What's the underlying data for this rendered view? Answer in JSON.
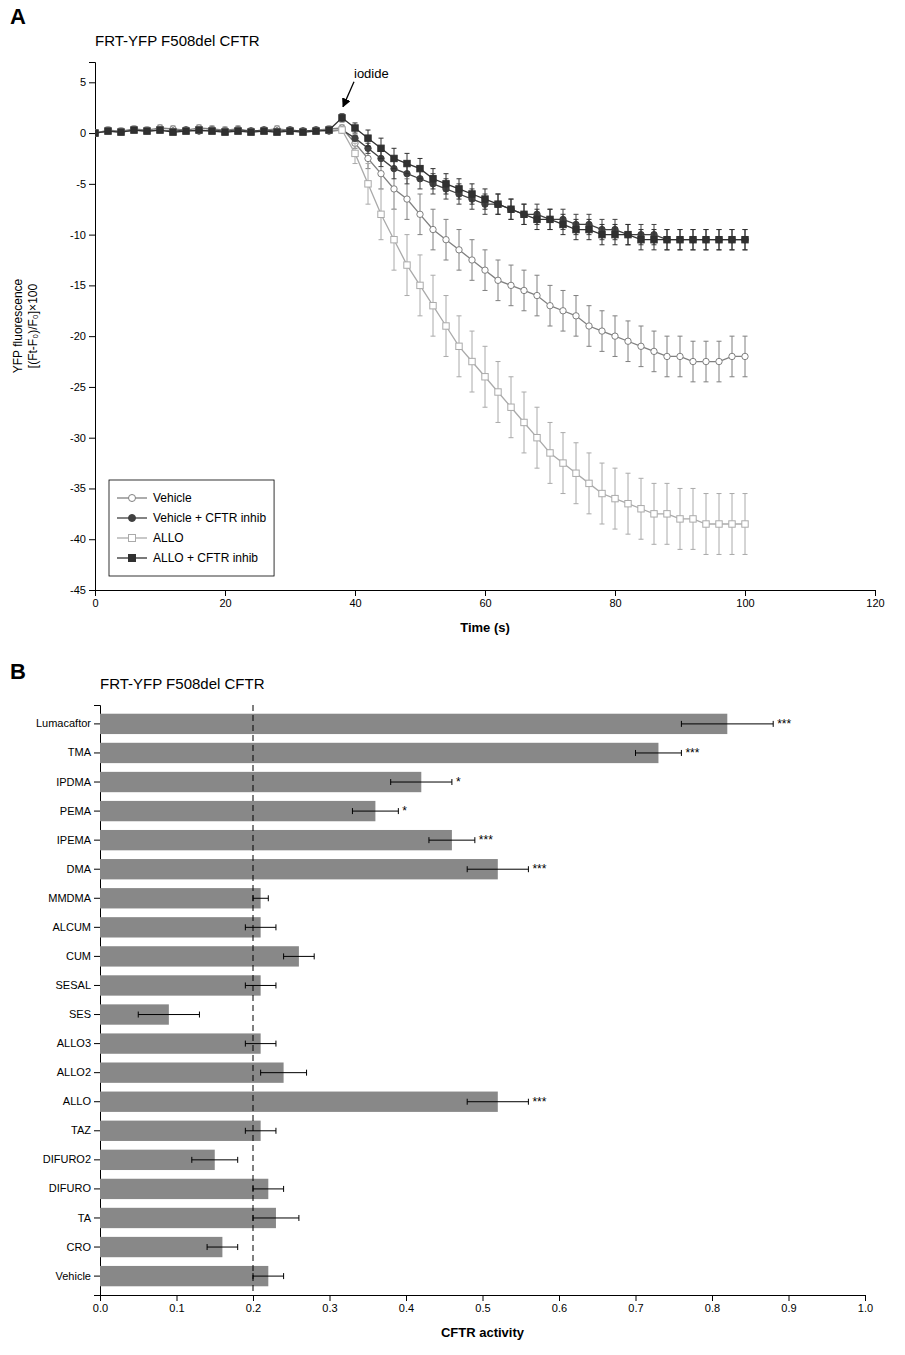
{
  "chart_data": [
    {
      "type": "line",
      "title": "FRT-YFP F508del CFTR",
      "xlabel": "Time (s)",
      "ylabel": "YFP fluorescence\n[(Ft-F₀)/F₀]×100",
      "xlim": [
        0,
        120
      ],
      "ylim": [
        -45,
        7
      ],
      "xticks": [
        0,
        20,
        40,
        60,
        80,
        100,
        120
      ],
      "yticks": [
        5,
        0,
        -5,
        -10,
        -15,
        -20,
        -25,
        -30,
        -35,
        -40,
        -45
      ],
      "grid": false,
      "legend": "lower left",
      "x": [
        0,
        2,
        4,
        6,
        8,
        10,
        12,
        14,
        16,
        18,
        20,
        22,
        24,
        26,
        28,
        30,
        32,
        34,
        36,
        38,
        40,
        42,
        44,
        46,
        48,
        50,
        52,
        54,
        56,
        58,
        60,
        62,
        64,
        66,
        68,
        70,
        72,
        74,
        76,
        78,
        80,
        82,
        84,
        86,
        88,
        90,
        92,
        94,
        96,
        98,
        100
      ],
      "series": [
        {
          "name": "Vehicle",
          "color": "#808080",
          "marker": "circle-open",
          "values": [
            0,
            0.3,
            0.2,
            0.4,
            0.3,
            0.5,
            0.4,
            0.3,
            0.5,
            0.4,
            0.3,
            0.4,
            0.2,
            0.3,
            0.4,
            0.3,
            0.2,
            0.3,
            0.4,
            0.5,
            -1.0,
            -2.5,
            -4.0,
            -5.5,
            -6.5,
            -8.0,
            -9.5,
            -10.5,
            -11.5,
            -12.5,
            -13.5,
            -14.5,
            -15.0,
            -15.5,
            -16.0,
            -17.0,
            -17.5,
            -18.0,
            -19.0,
            -19.5,
            -20.0,
            -20.5,
            -21.0,
            -21.5,
            -22.0,
            -22.0,
            -22.5,
            -22.5,
            -22.5,
            -22.0,
            -22.0
          ],
          "errors": [
            0.3,
            0.3,
            0.3,
            0.3,
            0.3,
            0.3,
            0.3,
            0.3,
            0.3,
            0.3,
            0.3,
            0.3,
            0.3,
            0.3,
            0.3,
            0.3,
            0.3,
            0.3,
            0.3,
            0.3,
            0.5,
            1.0,
            1.5,
            2.0,
            2.0,
            2.0,
            2.0,
            2.0,
            2.0,
            2.0,
            2.0,
            2.0,
            2.0,
            2.0,
            2.0,
            2.0,
            2.0,
            2.0,
            2.0,
            2.0,
            2.0,
            2.0,
            2.0,
            2.0,
            2.0,
            2.0,
            2.0,
            2.0,
            2.0,
            2.0,
            2.0
          ]
        },
        {
          "name": "Vehicle + CFTR inhib",
          "color": "#404040",
          "marker": "circle",
          "values": [
            0,
            0.2,
            0.1,
            0.3,
            0.2,
            0.3,
            0.2,
            0.3,
            0.2,
            0.3,
            0.2,
            0.3,
            0.2,
            0.3,
            0.2,
            0.3,
            0.2,
            0.3,
            0.2,
            0.3,
            -0.5,
            -1.5,
            -2.5,
            -3.5,
            -4.0,
            -4.5,
            -5.0,
            -5.5,
            -6.0,
            -6.5,
            -7.0,
            -7.0,
            -7.5,
            -8.0,
            -8.0,
            -8.5,
            -8.5,
            -9.0,
            -9.0,
            -9.5,
            -9.5,
            -10.0,
            -10.0,
            -10.0,
            -10.5,
            -10.5,
            -10.5,
            -10.5,
            -10.5,
            -10.5,
            -10.5
          ],
          "errors": [
            0.2,
            0.2,
            0.2,
            0.2,
            0.2,
            0.2,
            0.2,
            0.2,
            0.2,
            0.2,
            0.2,
            0.2,
            0.2,
            0.2,
            0.2,
            0.2,
            0.2,
            0.2,
            0.2,
            0.2,
            0.3,
            0.5,
            0.8,
            1.0,
            1.0,
            1.0,
            1.0,
            1.0,
            1.0,
            1.0,
            1.0,
            1.0,
            1.0,
            1.0,
            1.0,
            1.0,
            1.0,
            1.0,
            1.0,
            1.0,
            1.0,
            1.0,
            1.0,
            1.0,
            1.0,
            1.0,
            1.0,
            1.0,
            1.0,
            1.0,
            1.0
          ]
        },
        {
          "name": "ALLO",
          "color": "#aaaaaa",
          "marker": "square-open",
          "values": [
            0,
            0.2,
            0.1,
            0.3,
            0.2,
            0.3,
            0.1,
            0.2,
            0.3,
            0.2,
            0.1,
            0.2,
            0.1,
            0.2,
            0.1,
            0.2,
            0.1,
            0.2,
            0.3,
            0.3,
            -2.0,
            -5.0,
            -8.0,
            -10.5,
            -13.0,
            -15.0,
            -17.0,
            -19.0,
            -21.0,
            -22.5,
            -24.0,
            -25.5,
            -27.0,
            -28.5,
            -30.0,
            -31.5,
            -32.5,
            -33.5,
            -34.5,
            -35.5,
            -36.0,
            -36.5,
            -37.0,
            -37.5,
            -37.5,
            -38.0,
            -38.0,
            -38.5,
            -38.5,
            -38.5,
            -38.5
          ],
          "errors": [
            0.3,
            0.3,
            0.3,
            0.3,
            0.3,
            0.3,
            0.3,
            0.3,
            0.3,
            0.3,
            0.3,
            0.3,
            0.3,
            0.3,
            0.3,
            0.3,
            0.3,
            0.3,
            0.3,
            0.3,
            1.0,
            2.0,
            2.5,
            3.0,
            3.0,
            3.0,
            3.0,
            3.0,
            3.0,
            3.0,
            3.0,
            3.0,
            3.0,
            3.0,
            3.0,
            3.0,
            3.0,
            3.0,
            3.0,
            3.0,
            3.0,
            3.0,
            3.0,
            3.0,
            3.0,
            3.0,
            3.0,
            3.0,
            3.0,
            3.0,
            3.0
          ]
        },
        {
          "name": "ALLO + CFTR inhib",
          "color": "#303030",
          "marker": "square",
          "values": [
            0,
            0.2,
            0.1,
            0.3,
            0.2,
            0.3,
            0.1,
            0.2,
            0.3,
            0.2,
            0.1,
            0.2,
            0.1,
            0.2,
            0.1,
            0.2,
            0.1,
            0.2,
            0.3,
            1.5,
            0.5,
            -0.5,
            -1.5,
            -2.5,
            -3.0,
            -3.5,
            -4.5,
            -5.0,
            -5.5,
            -6.0,
            -6.5,
            -7.0,
            -7.5,
            -8.0,
            -8.5,
            -8.5,
            -9.0,
            -9.5,
            -9.5,
            -10.0,
            -10.0,
            -10.0,
            -10.5,
            -10.5,
            -10.5,
            -10.5,
            -10.5,
            -10.5,
            -10.5,
            -10.5,
            -10.5
          ],
          "errors": [
            0.2,
            0.2,
            0.2,
            0.2,
            0.2,
            0.2,
            0.2,
            0.2,
            0.2,
            0.2,
            0.2,
            0.2,
            0.2,
            0.2,
            0.2,
            0.2,
            0.2,
            0.2,
            0.2,
            0.4,
            0.5,
            0.8,
            1.0,
            1.0,
            1.0,
            1.0,
            1.0,
            1.0,
            1.0,
            1.0,
            1.0,
            1.0,
            1.0,
            1.0,
            1.0,
            1.0,
            1.0,
            1.0,
            1.0,
            1.0,
            1.0,
            1.0,
            1.0,
            1.0,
            1.0,
            1.0,
            1.0,
            1.0,
            1.0,
            1.0,
            1.0
          ]
        }
      ],
      "annotations": [
        {
          "text": "iodide",
          "x": 38,
          "y": 2.5
        },
        {
          "text": "A"
        }
      ]
    },
    {
      "type": "bar",
      "orientation": "horizontal",
      "title": "FRT-YFP F508del CFTR",
      "xlabel": "CFTR activity",
      "xlim": [
        0,
        1.0
      ],
      "xticks": [
        {
          "value": 0.0,
          "label": "0.0"
        },
        0.1,
        0.2,
        0.3,
        0.4,
        0.5,
        0.6,
        0.7,
        0.8,
        0.9,
        {
          "value": 1.0,
          "label": "1.0"
        }
      ],
      "grid": false,
      "color": "#888888",
      "categories": [
        "Lumacaftor",
        "TMA",
        "IPDMA",
        "PEMA",
        "IPEMA",
        "DMA",
        "MMDMA",
        "ALCUM",
        "CUM",
        "SESAL",
        "SES",
        "ALLO3",
        "ALLO2",
        "ALLO",
        "TAZ",
        "DIFURO2",
        "DIFURO",
        "TA",
        "CRO",
        "Vehicle"
      ],
      "values": [
        0.82,
        0.73,
        0.42,
        0.36,
        0.46,
        0.52,
        0.21,
        0.21,
        0.26,
        0.21,
        0.09,
        0.21,
        0.24,
        0.52,
        0.21,
        0.15,
        0.22,
        0.23,
        0.16,
        0.22
      ],
      "errors": [
        0.06,
        0.03,
        0.04,
        0.03,
        0.03,
        0.04,
        0.01,
        0.02,
        0.02,
        0.02,
        0.04,
        0.02,
        0.03,
        0.04,
        0.02,
        0.03,
        0.02,
        0.03,
        0.02,
        0.02
      ],
      "reference_lines": [
        {
          "x": 0.2,
          "line_style": "dashed"
        }
      ],
      "annotations": [
        {
          "text": "***",
          "category": "Lumacaftor"
        },
        {
          "text": "***",
          "category": "TMA"
        },
        {
          "text": "*",
          "category": "IPDMA"
        },
        {
          "text": "*",
          "category": "PEMA"
        },
        {
          "text": "***",
          "category": "IPEMA"
        },
        {
          "text": "***",
          "category": "DMA"
        },
        {
          "text": "***",
          "category": "ALLO"
        },
        {
          "text": "B"
        }
      ]
    }
  ]
}
